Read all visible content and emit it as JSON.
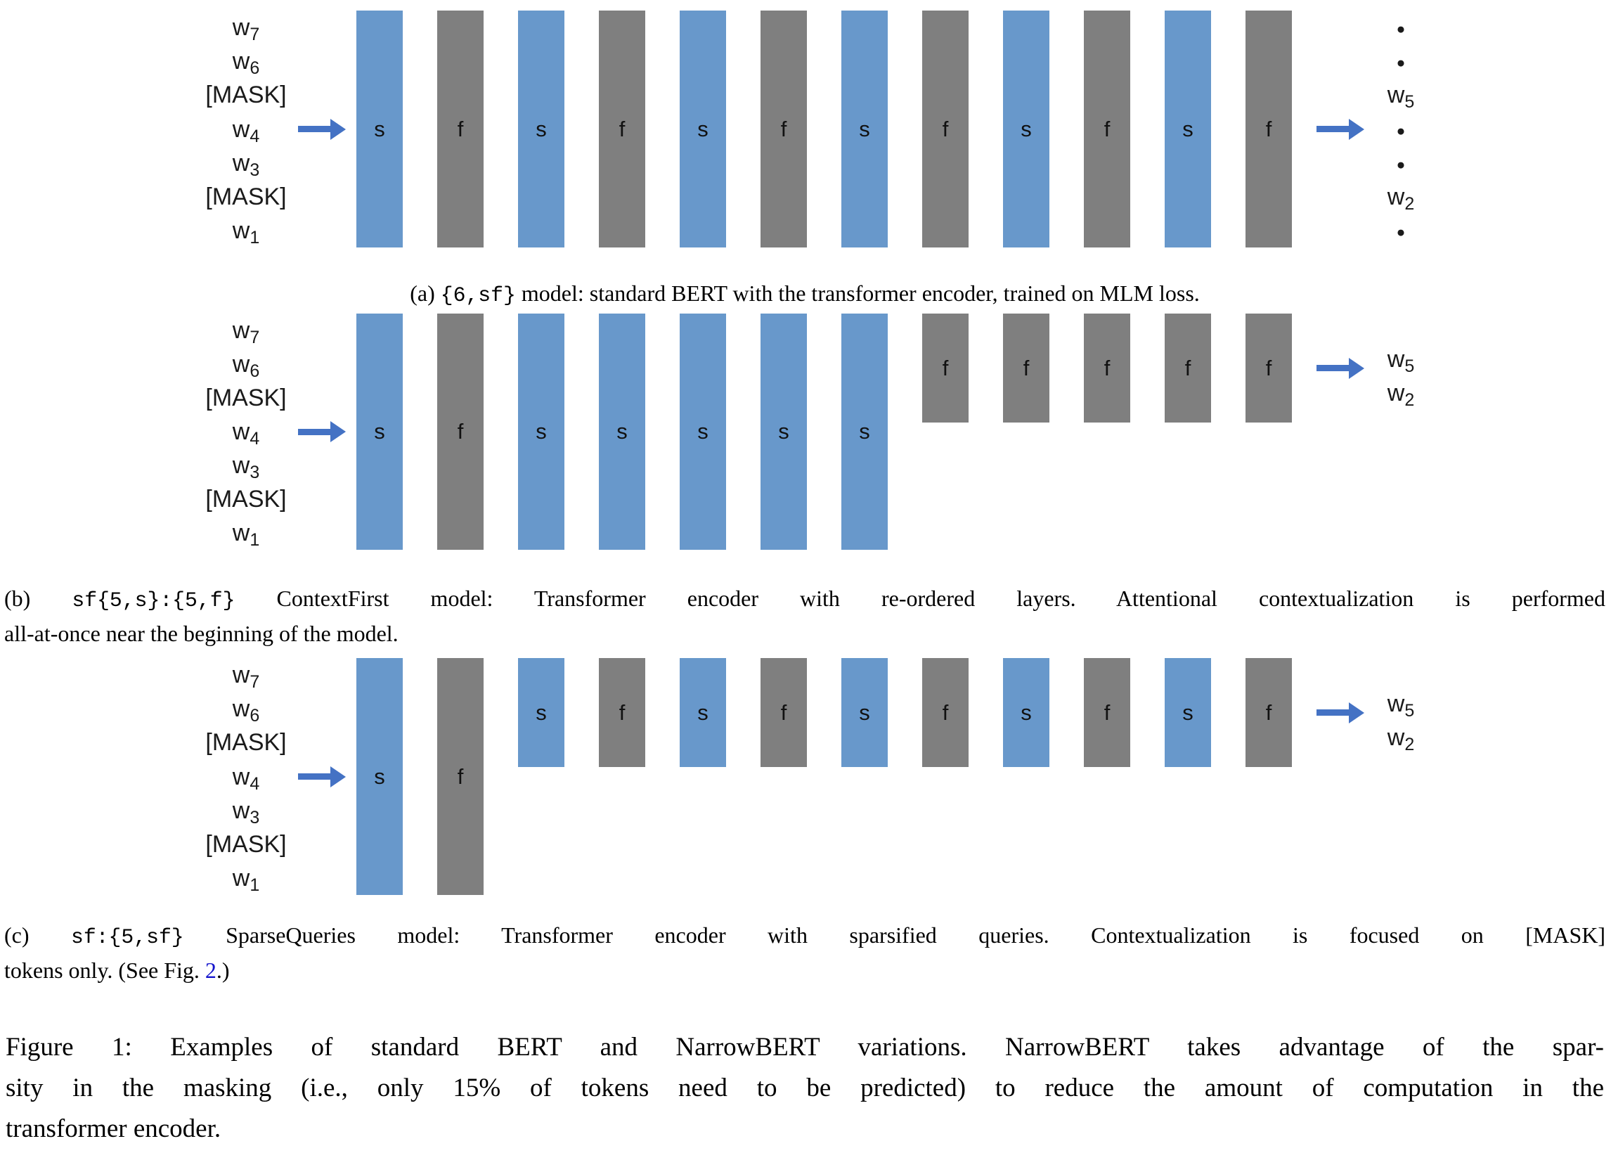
{
  "colors": {
    "background": "#FFFFFF",
    "bar_blue": "#6898CB",
    "bar_gray": "#7F7F7F",
    "arrow_blue": "#4472C4",
    "link_blue": "#1414CC",
    "text": "#000000"
  },
  "panels": [
    {
      "id": "a",
      "inputs": [
        {
          "base": "w",
          "sub": "7"
        },
        {
          "base": "w",
          "sub": "6"
        },
        {
          "text": "[MASK]"
        },
        {
          "base": "w",
          "sub": "4"
        },
        {
          "base": "w",
          "sub": "3"
        },
        {
          "text": "[MASK]"
        },
        {
          "base": "w",
          "sub": "1"
        }
      ],
      "bars": [
        {
          "label": "s",
          "size": "tall"
        },
        {
          "label": "f",
          "size": "tall"
        },
        {
          "label": "s",
          "size": "tall"
        },
        {
          "label": "f",
          "size": "tall"
        },
        {
          "label": "s",
          "size": "tall"
        },
        {
          "label": "f",
          "size": "tall"
        },
        {
          "label": "s",
          "size": "tall"
        },
        {
          "label": "f",
          "size": "tall"
        },
        {
          "label": "s",
          "size": "tall"
        },
        {
          "label": "f",
          "size": "tall"
        },
        {
          "label": "s",
          "size": "tall"
        },
        {
          "label": "f",
          "size": "tall"
        }
      ],
      "outputs": {
        "mode": "rows",
        "items": [
          {
            "dot": true
          },
          {
            "dot": true
          },
          {
            "base": "w",
            "sub": "5"
          },
          {
            "dot": true
          },
          {
            "dot": true
          },
          {
            "base": "w",
            "sub": "2"
          },
          {
            "dot": true
          }
        ]
      },
      "caption": {
        "align": "center",
        "lines": [
          [
            {
              "text": "(a) "
            },
            {
              "text": "{6,sf}",
              "mono": true
            },
            {
              "text": " model: standard BERT with the transformer encoder, trained on MLM loss."
            }
          ]
        ]
      }
    },
    {
      "id": "b",
      "inputs": [
        {
          "base": "w",
          "sub": "7"
        },
        {
          "base": "w",
          "sub": "6"
        },
        {
          "text": "[MASK]"
        },
        {
          "base": "w",
          "sub": "4"
        },
        {
          "base": "w",
          "sub": "3"
        },
        {
          "text": "[MASK]"
        },
        {
          "base": "w",
          "sub": "1"
        }
      ],
      "bars": [
        {
          "label": "s",
          "size": "tall"
        },
        {
          "label": "f",
          "size": "tall"
        },
        {
          "label": "s",
          "size": "tall"
        },
        {
          "label": "s",
          "size": "tall"
        },
        {
          "label": "s",
          "size": "tall"
        },
        {
          "label": "s",
          "size": "tall"
        },
        {
          "label": "s",
          "size": "tall"
        },
        {
          "label": "f",
          "size": "short"
        },
        {
          "label": "f",
          "size": "short"
        },
        {
          "label": "f",
          "size": "short"
        },
        {
          "label": "f",
          "size": "short"
        },
        {
          "label": "f",
          "size": "short"
        }
      ],
      "outputs": {
        "mode": "pair",
        "items": [
          {
            "base": "w",
            "sub": "5"
          },
          {
            "base": "w",
            "sub": "2"
          }
        ]
      },
      "caption": {
        "align": "left",
        "justify_first": true,
        "lines": [
          [
            {
              "text": "(b) "
            },
            {
              "text": "sf{5,s}:{5,f}",
              "mono": true
            },
            {
              "text": " ContextFirst model: Transformer encoder with re-ordered layers. Attentional contextualization is performed"
            }
          ],
          [
            {
              "text": "all-at-once near the beginning of the model."
            }
          ]
        ]
      }
    },
    {
      "id": "c",
      "inputs": [
        {
          "base": "w",
          "sub": "7"
        },
        {
          "base": "w",
          "sub": "6"
        },
        {
          "text": "[MASK]"
        },
        {
          "base": "w",
          "sub": "4"
        },
        {
          "base": "w",
          "sub": "3"
        },
        {
          "text": "[MASK]"
        },
        {
          "base": "w",
          "sub": "1"
        }
      ],
      "bars": [
        {
          "label": "s",
          "size": "tall"
        },
        {
          "label": "f",
          "size": "tall"
        },
        {
          "label": "s",
          "size": "short"
        },
        {
          "label": "f",
          "size": "short"
        },
        {
          "label": "s",
          "size": "short"
        },
        {
          "label": "f",
          "size": "short"
        },
        {
          "label": "s",
          "size": "short"
        },
        {
          "label": "f",
          "size": "short"
        },
        {
          "label": "s",
          "size": "short"
        },
        {
          "label": "f",
          "size": "short"
        },
        {
          "label": "s",
          "size": "short"
        },
        {
          "label": "f",
          "size": "short"
        }
      ],
      "outputs": {
        "mode": "pair",
        "items": [
          {
            "base": "w",
            "sub": "5"
          },
          {
            "base": "w",
            "sub": "2"
          }
        ]
      },
      "caption": {
        "align": "left",
        "justify_first": true,
        "lines": [
          [
            {
              "text": "(c) "
            },
            {
              "text": "sf:{5,sf}",
              "mono": true
            },
            {
              "text": " SparseQueries model: Transformer encoder with sparsified queries. Contextualization is focused on [MASK]"
            }
          ],
          [
            {
              "text": "tokens only. (See Fig. "
            },
            {
              "text": "2",
              "link": true
            },
            {
              "text": ".)"
            }
          ]
        ]
      }
    }
  ],
  "figure_caption": {
    "lines": [
      "Figure 1: Examples of standard BERT and NarrowBERT variations. NarrowBERT takes advantage of the spar-",
      "sity in the masking (i.e., only 15% of tokens need to be predicted) to reduce the amount of computation in the",
      "transformer encoder."
    ]
  }
}
